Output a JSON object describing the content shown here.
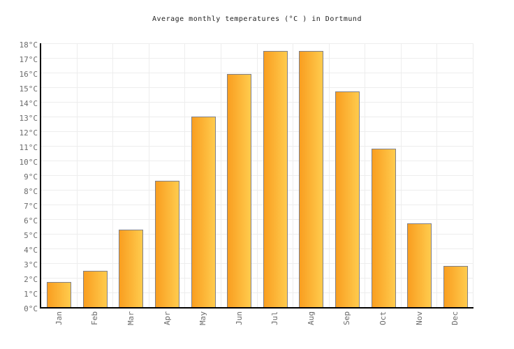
{
  "title": "Average monthly temperatures (°C ) in Dortmund",
  "chart_data": {
    "type": "bar",
    "title": "Average monthly temperatures (°C ) in Dortmund",
    "categories": [
      "Jan",
      "Feb",
      "Mar",
      "Apr",
      "May",
      "Jun",
      "Jul",
      "Aug",
      "Sep",
      "Oct",
      "Nov",
      "Dec"
    ],
    "values": [
      1.7,
      2.5,
      5.3,
      8.6,
      13.0,
      15.9,
      17.5,
      17.5,
      14.7,
      10.8,
      5.7,
      2.8
    ],
    "unit": "°C",
    "xlabel": "",
    "ylabel": "",
    "ylim": [
      0,
      18
    ],
    "y_tick_step": 1,
    "y_tick_suffix": "°C",
    "grid": true,
    "legend": false,
    "x_label_rotation_deg": -90,
    "colors": {
      "background": "#FFFFFF",
      "bar_gradient_left": "#F99E20",
      "bar_gradient_right": "#FFCB4D",
      "bar_border": "#808088",
      "gridline": "#EDEDED",
      "axis": "#000000",
      "tick_label": "#6B6B6B",
      "title": "#222222"
    }
  }
}
